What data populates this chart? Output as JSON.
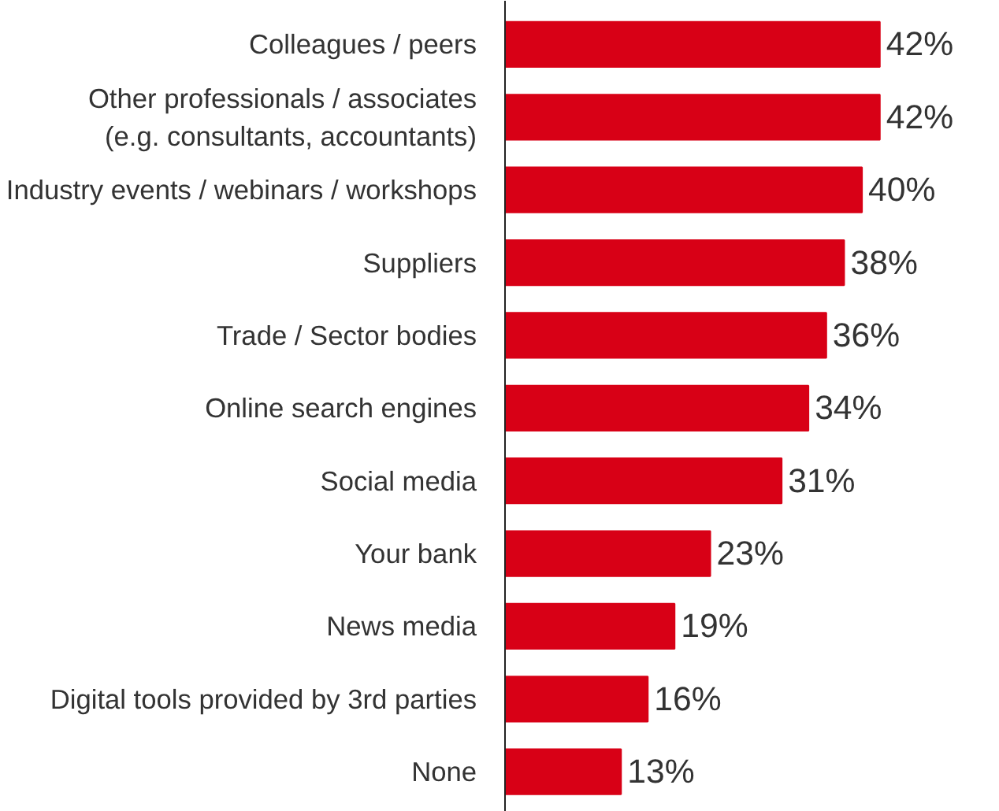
{
  "chart_data": {
    "type": "bar",
    "orientation": "horizontal",
    "categories": [
      "Colleagues / peers",
      "Other professionals / associates\n(e.g. consultants, accountants)",
      "Industry events / webinars / workshops",
      "Suppliers",
      "Trade / Sector bodies",
      "Online search engines",
      "Social media",
      "Your bank",
      "News media",
      "Digital tools provided by 3rd parties",
      "None"
    ],
    "values": [
      42,
      42,
      40,
      38,
      36,
      34,
      31,
      23,
      19,
      16,
      13
    ],
    "value_labels": [
      "42%",
      "42%",
      "40%",
      "38%",
      "36%",
      "34%",
      "31%",
      "23%",
      "19%",
      "16%",
      "13%"
    ],
    "color": "#d80016",
    "grid": false
  }
}
